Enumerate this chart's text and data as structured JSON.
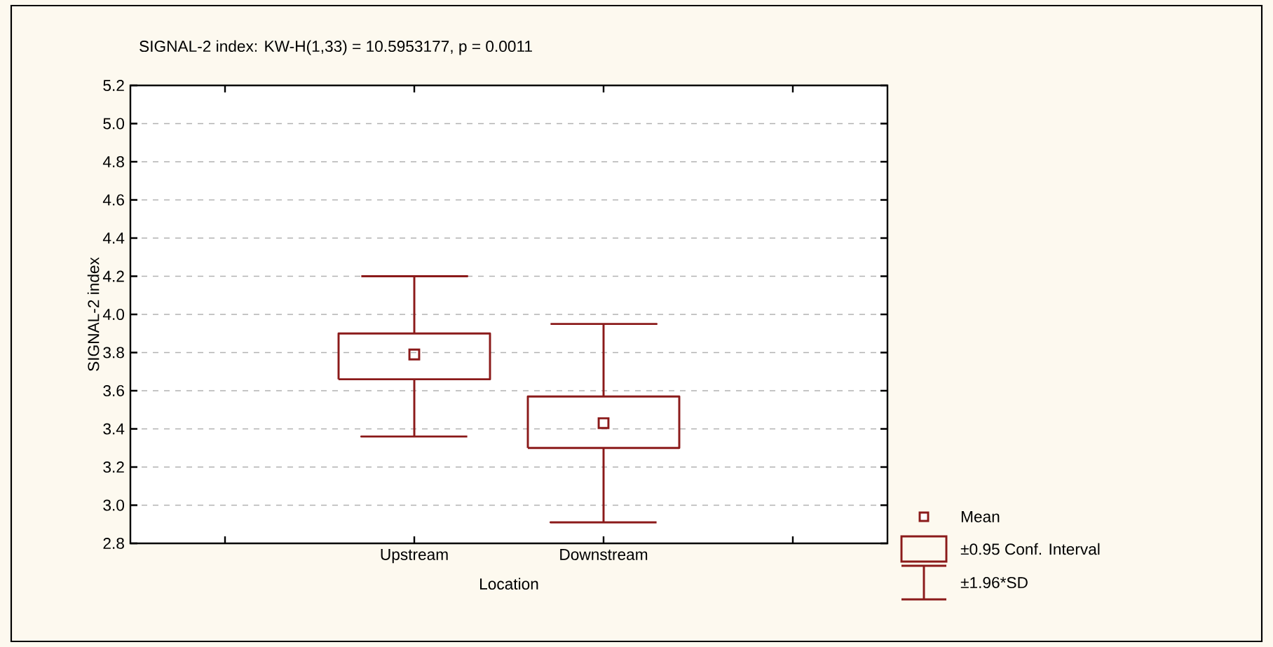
{
  "chart_data": {
    "type": "box",
    "title": "SIGNAL-2 index:  KW-H(1,33) = 10.5953177, p = 0.0011",
    "xlabel": "Location",
    "ylabel": "SIGNAL-2 index",
    "categories": [
      "Upstream",
      "Downstream"
    ],
    "color": "#8b1a1a",
    "boxes": [
      {
        "low": 3.36,
        "q1": 3.66,
        "q3": 3.9,
        "high": 4.2,
        "mean": 3.79
      },
      {
        "low": 2.91,
        "q1": 3.3,
        "q3": 3.57,
        "high": 3.95,
        "mean": 3.43
      }
    ],
    "ylim": [
      2.8,
      5.2
    ],
    "yticks": [
      2.8,
      {
        "value": 3,
        "label": "3.0"
      },
      3.2,
      3.4,
      3.6,
      3.8,
      {
        "value": 4,
        "label": "4.0"
      },
      4.2,
      4.4,
      4.6,
      4.8,
      {
        "value": 5,
        "label": "5.0"
      },
      5.2
    ],
    "grid": "y",
    "annotations": [
      "Mean",
      "±0.95 Conf. Interval",
      "±1.96*SD"
    ]
  }
}
